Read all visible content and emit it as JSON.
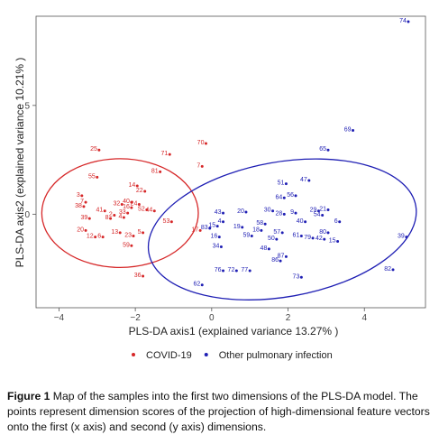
{
  "chart_data": {
    "type": "scatter",
    "xlabel": "PLS-DA axis1 (explained variance 13.27% )",
    "ylabel": "PLS-DA axis2 (explained variance 10.21% )",
    "xlim": [
      -4.6,
      5.6
    ],
    "ylim": [
      -4.3,
      9.1
    ],
    "x_ticks": [
      -4,
      -2,
      0,
      2,
      4
    ],
    "y_ticks": [
      0,
      5
    ],
    "grid": false,
    "legend_position": "bottom",
    "series": [
      {
        "name": "COVID-19",
        "color": "#d62728",
        "ellipse": {
          "cx": -2.4,
          "cy": 0.05,
          "rx": 2.05,
          "ry": 2.5,
          "angle": 0
        },
        "points": [
          {
            "label": "25",
            "x": -2.95,
            "y": 2.95
          },
          {
            "label": "55",
            "x": -3.0,
            "y": 1.7
          },
          {
            "label": "71",
            "x": -1.1,
            "y": 2.75
          },
          {
            "label": "70",
            "x": -0.15,
            "y": 3.25
          },
          {
            "label": "7",
            "x": -0.25,
            "y": 2.2
          },
          {
            "label": "81",
            "x": -1.35,
            "y": 1.95
          },
          {
            "label": "3",
            "x": -3.4,
            "y": 0.85
          },
          {
            "label": "7",
            "x": -3.3,
            "y": 0.55
          },
          {
            "label": "38",
            "x": -3.35,
            "y": 0.35
          },
          {
            "label": "41",
            "x": -2.8,
            "y": 0.15
          },
          {
            "label": "32",
            "x": -2.35,
            "y": 0.45
          },
          {
            "label": "40",
            "x": -2.1,
            "y": 0.55
          },
          {
            "label": "22",
            "x": -1.75,
            "y": 1.05
          },
          {
            "label": "14",
            "x": -1.95,
            "y": 1.3
          },
          {
            "label": "16",
            "x": -2.1,
            "y": 0.3
          },
          {
            "label": "33",
            "x": -2.2,
            "y": 0.05
          },
          {
            "label": "24",
            "x": -1.9,
            "y": 0.45
          },
          {
            "label": "52",
            "x": -1.7,
            "y": 0.2
          },
          {
            "label": "44",
            "x": -1.5,
            "y": 0.15
          },
          {
            "label": "2",
            "x": -2.55,
            "y": -0.05
          },
          {
            "label": "8",
            "x": -2.65,
            "y": -0.2
          },
          {
            "label": "4",
            "x": -2.3,
            "y": -0.15
          },
          {
            "label": "39",
            "x": -3.2,
            "y": -0.2
          },
          {
            "label": "53",
            "x": -1.05,
            "y": -0.35
          },
          {
            "label": "20",
            "x": -3.3,
            "y": -0.75
          },
          {
            "label": "12",
            "x": -3.05,
            "y": -1.05
          },
          {
            "label": "6",
            "x": -2.85,
            "y": -1.05
          },
          {
            "label": "13",
            "x": -2.4,
            "y": -0.85
          },
          {
            "label": "23",
            "x": -2.05,
            "y": -1.0
          },
          {
            "label": "5",
            "x": -1.8,
            "y": -0.85
          },
          {
            "label": "59",
            "x": -2.1,
            "y": -1.45
          },
          {
            "label": "36",
            "x": -1.8,
            "y": -2.85
          },
          {
            "label": "17",
            "x": -0.3,
            "y": -0.75
          }
        ]
      },
      {
        "name": "Other pulmonary infection",
        "color": "#1f1fb4",
        "ellipse": {
          "cx": 1.85,
          "cy": -0.7,
          "rx": 3.55,
          "ry": 3.1,
          "angle": -10
        },
        "points": [
          {
            "label": "74",
            "x": 5.15,
            "y": 8.85
          },
          {
            "label": "69",
            "x": 3.7,
            "y": 3.85
          },
          {
            "label": "65",
            "x": 3.05,
            "y": 2.95
          },
          {
            "label": "47",
            "x": 2.55,
            "y": 1.55
          },
          {
            "label": "51",
            "x": 1.95,
            "y": 1.4
          },
          {
            "label": "64",
            "x": 1.9,
            "y": 0.75
          },
          {
            "label": "56",
            "x": 2.2,
            "y": 0.85
          },
          {
            "label": "43",
            "x": 0.3,
            "y": 0.05
          },
          {
            "label": "20",
            "x": 0.9,
            "y": 0.1
          },
          {
            "label": "30",
            "x": 1.6,
            "y": 0.15
          },
          {
            "label": "28",
            "x": 1.9,
            "y": 0.0
          },
          {
            "label": "9",
            "x": 2.2,
            "y": 0.05
          },
          {
            "label": "29",
            "x": 2.8,
            "y": 0.15
          },
          {
            "label": "21",
            "x": 3.05,
            "y": 0.2
          },
          {
            "label": "54",
            "x": 2.9,
            "y": -0.05
          },
          {
            "label": "6",
            "x": 3.35,
            "y": -0.35
          },
          {
            "label": "40",
            "x": 2.45,
            "y": -0.35
          },
          {
            "label": "58",
            "x": 1.4,
            "y": -0.45
          },
          {
            "label": "15",
            "x": 0.15,
            "y": -0.55
          },
          {
            "label": "19",
            "x": 0.8,
            "y": -0.6
          },
          {
            "label": "18",
            "x": 1.3,
            "y": -0.75
          },
          {
            "label": "57",
            "x": 1.85,
            "y": -0.85
          },
          {
            "label": "61",
            "x": 2.35,
            "y": -1.0
          },
          {
            "label": "79",
            "x": 2.65,
            "y": -1.1
          },
          {
            "label": "42",
            "x": 2.95,
            "y": -1.15
          },
          {
            "label": "80",
            "x": 3.05,
            "y": -0.85
          },
          {
            "label": "15",
            "x": 3.3,
            "y": -1.25
          },
          {
            "label": "16",
            "x": 0.2,
            "y": -1.05
          },
          {
            "label": "59",
            "x": 1.05,
            "y": -1.0
          },
          {
            "label": "50",
            "x": 1.7,
            "y": -1.15
          },
          {
            "label": "34",
            "x": 0.25,
            "y": -1.5
          },
          {
            "label": "48",
            "x": 1.5,
            "y": -1.6
          },
          {
            "label": "87",
            "x": 1.95,
            "y": -1.95
          },
          {
            "label": "86",
            "x": 1.8,
            "y": -2.15
          },
          {
            "label": "76",
            "x": 0.3,
            "y": -2.6
          },
          {
            "label": "72",
            "x": 0.65,
            "y": -2.6
          },
          {
            "label": "77",
            "x": 1.0,
            "y": -2.6
          },
          {
            "label": "73",
            "x": 2.35,
            "y": -2.9
          },
          {
            "label": "62",
            "x": -0.25,
            "y": -3.25
          },
          {
            "label": "39",
            "x": 5.1,
            "y": -1.05
          },
          {
            "label": "82",
            "x": 4.75,
            "y": -2.55
          },
          {
            "label": "4",
            "x": 0.3,
            "y": -0.35
          },
          {
            "label": "83",
            "x": -0.05,
            "y": -0.65
          }
        ]
      }
    ]
  },
  "caption": {
    "label": "Figure 1",
    "text": "Map of the samples into the first two dimensions of the PLS-DA model. The points represent dimension scores of the projection of high-dimensional feature vectors onto the first (x axis) and second (y axis) dimensions."
  }
}
